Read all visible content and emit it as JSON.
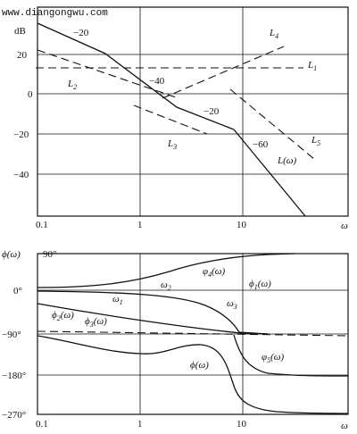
{
  "watermark": "www.diangongwu.com",
  "top_plot": {
    "y_unit": "dB",
    "y_ticks": [
      "20",
      "0",
      "−20",
      "−40"
    ],
    "x_ticks": [
      "0.1",
      "1",
      "10"
    ],
    "x_axis": "ω",
    "slope_labels": [
      "−20",
      "−40",
      "−20",
      "−60"
    ],
    "line_labels": {
      "L1": "L",
      "L1_sub": "1",
      "L2": "L",
      "L2_sub": "2",
      "L3": "L",
      "L3_sub": "3",
      "L4": "L",
      "L4_sub": "4",
      "L5": "L",
      "L5_sub": "5",
      "L": "L(ω)"
    }
  },
  "bottom_plot": {
    "y_label": "ϕ(ω)",
    "y_ticks": [
      "90°",
      "0°",
      "−90°",
      "−180°",
      "−270°"
    ],
    "x_ticks": [
      "0.1",
      "1",
      "10"
    ],
    "x_axis": "ω",
    "freq_labels": {
      "w1": "ω",
      "w1_sub": "1",
      "w2": "ω",
      "w2_sub": "2",
      "w3": "ω",
      "w3_sub": "3"
    },
    "phase_labels": {
      "p1": "ϕ",
      "p1_sub": "1",
      "p1_arg": "(ω)",
      "p2": "ϕ",
      "p2_sub": "2",
      "p2_arg": "(ω)",
      "p3": "ϕ",
      "p3_sub": "3",
      "p3_arg": "(ω)",
      "p4": "φ",
      "p4_sub": "4",
      "p4_arg": "(ω)",
      "p5": "φ",
      "p5_sub": "5",
      "p5_arg": "(ω)",
      "p": "ϕ(ω)"
    }
  }
}
